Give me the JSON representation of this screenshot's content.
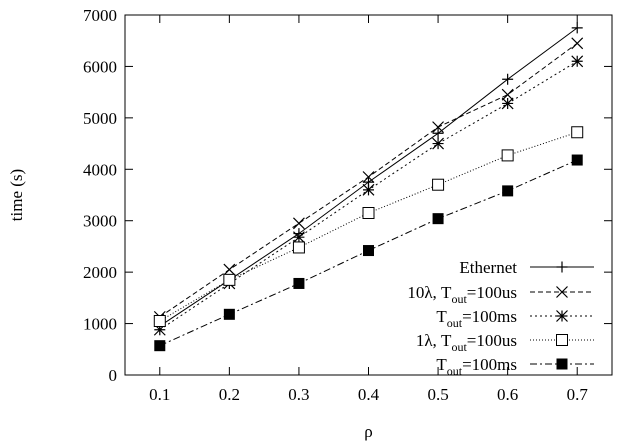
{
  "chart_data": {
    "type": "line",
    "xlabel": "ρ",
    "ylabel": "time (s)",
    "xlim": [
      0.05,
      0.75
    ],
    "ylim": [
      0,
      7000
    ],
    "xticks": [
      0.1,
      0.2,
      0.3,
      0.4,
      0.5,
      0.6,
      0.7
    ],
    "xtick_labels": [
      "0.1",
      "0.2",
      "0.3",
      "0.4",
      "0.5",
      "0.6",
      "0.7"
    ],
    "yticks": [
      0,
      1000,
      2000,
      3000,
      4000,
      5000,
      6000,
      7000
    ],
    "ytick_labels": [
      "0",
      "1000",
      "2000",
      "3000",
      "4000",
      "5000",
      "6000",
      "7000"
    ],
    "grid": false,
    "legend_position": "bottom-right",
    "x": [
      0.1,
      0.2,
      0.3,
      0.4,
      0.5,
      0.6,
      0.7
    ],
    "series": [
      {
        "name": "Ethernet",
        "legend": {
          "prefix": "",
          "base": "Ethernet",
          "sub": "",
          "suffix": ""
        },
        "marker": "plus",
        "dash": "",
        "color": "#000000",
        "values": [
          950,
          1850,
          2750,
          3750,
          4700,
          5750,
          6750
        ]
      },
      {
        "name": "10λ, T_out=100us",
        "legend": {
          "prefix": "10λ, ",
          "base": "T",
          "sub": "out",
          "suffix": "=100us"
        },
        "marker": "x",
        "dash": "5,3",
        "color": "#000000",
        "values": [
          1130,
          2050,
          2950,
          3850,
          4820,
          5450,
          6450
        ]
      },
      {
        "name": "T_out=100ms",
        "legend": {
          "prefix": "",
          "base": "T",
          "sub": "out",
          "suffix": "=100ms"
        },
        "marker": "star",
        "dash": "2,3",
        "color": "#000000",
        "values": [
          880,
          1780,
          2680,
          3600,
          4500,
          5280,
          6100
        ]
      },
      {
        "name": "1λ, T_out=100us",
        "legend": {
          "prefix": "1λ, ",
          "base": "T",
          "sub": "out",
          "suffix": "=100us"
        },
        "marker": "square-open",
        "dash": "1,2",
        "color": "#000000",
        "values": [
          1050,
          1850,
          2480,
          3150,
          3700,
          4270,
          4720
        ]
      },
      {
        "name": "T_out=100ms",
        "legend": {
          "prefix": "",
          "base": "T",
          "sub": "out",
          "suffix": "=100ms"
        },
        "marker": "square-filled",
        "dash": "7,3,2,3",
        "color": "#000000",
        "values": [
          570,
          1180,
          1780,
          2420,
          3040,
          3580,
          4180
        ]
      }
    ]
  }
}
